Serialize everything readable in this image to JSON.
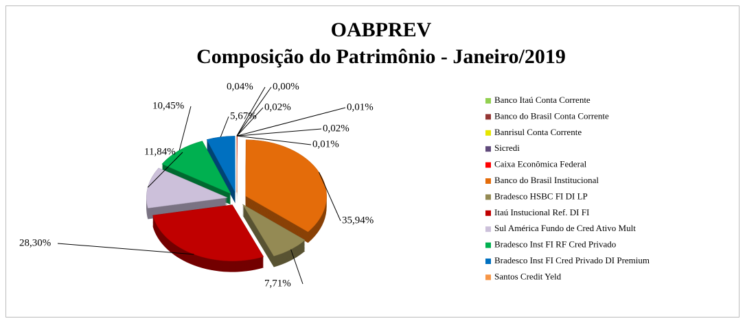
{
  "chart_data": {
    "type": "pie",
    "title": "OABPREV",
    "subtitle": "Composição do Patrimônio  - Janeiro/2019",
    "categories": [
      "Banco Itaú Conta Corrente",
      "Banco do Brasil Conta Corrente",
      "Banrisul Conta Corrente",
      "Sicredi",
      "Caixa Econômica Federal",
      "Banco do Brasil Institucional",
      "Bradesco HSBC FI DI LP",
      "Itaú Instucional Ref. DI FI",
      "Sul América Fundo de Cred Ativo Mult",
      "Bradesco Inst FI RF Cred Privado",
      "Bradesco Inst FI Cred Privado DI Premium",
      "Santos Credit Yeld"
    ],
    "values": [
      0.01,
      0.0,
      0.02,
      0.02,
      0.01,
      35.94,
      7.71,
      28.3,
      11.84,
      10.45,
      5.67,
      0.04
    ],
    "value_labels": [
      "0,01%",
      "0,00%",
      "0,02%",
      "0,02%",
      "0,01%",
      "35,94%",
      "7,71%",
      "28,30%",
      "11,84%",
      "10,45%",
      "5,67%",
      "0,04%"
    ],
    "colors": [
      "#92d050",
      "#943634",
      "#e6e600",
      "#604a7b",
      "#ff0000",
      "#e46c0a",
      "#948a54",
      "#c00000",
      "#ccc0da",
      "#00b050",
      "#0070c0",
      "#f79646"
    ],
    "legend": "right"
  }
}
